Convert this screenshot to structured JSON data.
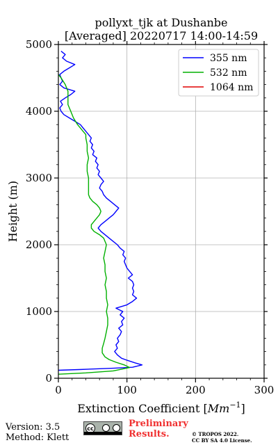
{
  "chart_data": {
    "type": "line",
    "title_line1": "pollyxt_tjk at Dushanbe",
    "title_line2": "[Averaged] 20220717 14:00-14:59",
    "xlabel_text": "Extinction Coefficient [",
    "xlabel_unit": "Mm",
    "xlabel_exponent": "−1",
    "xlabel_close": "]",
    "ylabel": "Height (m)",
    "xlim": [
      0,
      300
    ],
    "ylim": [
      0,
      5000
    ],
    "x_ticks": [
      "0",
      "100",
      "200",
      "300"
    ],
    "y_ticks": [
      "0",
      "1000",
      "2000",
      "3000",
      "4000",
      "5000"
    ],
    "grid": true,
    "legend_position": "top-right",
    "series": [
      {
        "name": "355 nm",
        "color": "#0000ff",
        "points": [
          [
            0,
            120
          ],
          [
            30,
            130
          ],
          [
            80,
            150
          ],
          [
            108,
            165
          ],
          [
            122,
            200
          ],
          [
            112,
            230
          ],
          [
            100,
            270
          ],
          [
            92,
            300
          ],
          [
            86,
            350
          ],
          [
            82,
            400
          ],
          [
            86,
            450
          ],
          [
            84,
            500
          ],
          [
            88,
            550
          ],
          [
            86,
            600
          ],
          [
            90,
            650
          ],
          [
            92,
            700
          ],
          [
            88,
            750
          ],
          [
            94,
            800
          ],
          [
            92,
            850
          ],
          [
            96,
            900
          ],
          [
            90,
            950
          ],
          [
            94,
            1000
          ],
          [
            84,
            1050
          ],
          [
            100,
            1100
          ],
          [
            108,
            1150
          ],
          [
            114,
            1200
          ],
          [
            108,
            1250
          ],
          [
            110,
            1300
          ],
          [
            108,
            1350
          ],
          [
            110,
            1400
          ],
          [
            108,
            1450
          ],
          [
            102,
            1500
          ],
          [
            108,
            1550
          ],
          [
            104,
            1600
          ],
          [
            100,
            1650
          ],
          [
            98,
            1700
          ],
          [
            96,
            1750
          ],
          [
            98,
            1800
          ],
          [
            94,
            1850
          ],
          [
            96,
            1900
          ],
          [
            90,
            1950
          ],
          [
            86,
            2000
          ],
          [
            80,
            2050
          ],
          [
            74,
            2100
          ],
          [
            68,
            2150
          ],
          [
            62,
            2200
          ],
          [
            58,
            2250
          ],
          [
            62,
            2300
          ],
          [
            68,
            2350
          ],
          [
            74,
            2400
          ],
          [
            80,
            2450
          ],
          [
            84,
            2500
          ],
          [
            88,
            2550
          ],
          [
            82,
            2600
          ],
          [
            76,
            2650
          ],
          [
            70,
            2700
          ],
          [
            66,
            2750
          ],
          [
            64,
            2800
          ],
          [
            60,
            2850
          ],
          [
            62,
            2900
          ],
          [
            66,
            2950
          ],
          [
            62,
            3000
          ],
          [
            58,
            3050
          ],
          [
            60,
            3100
          ],
          [
            56,
            3150
          ],
          [
            58,
            3200
          ],
          [
            54,
            3250
          ],
          [
            56,
            3300
          ],
          [
            50,
            3350
          ],
          [
            52,
            3400
          ],
          [
            48,
            3450
          ],
          [
            50,
            3500
          ],
          [
            46,
            3550
          ],
          [
            48,
            3600
          ],
          [
            44,
            3650
          ],
          [
            40,
            3700
          ],
          [
            36,
            3750
          ],
          [
            32,
            3800
          ],
          [
            24,
            3850
          ],
          [
            16,
            3900
          ],
          [
            8,
            3950
          ],
          [
            4,
            4000
          ],
          [
            2,
            4050
          ],
          [
            6,
            4100
          ],
          [
            3,
            4150
          ],
          [
            10,
            4200
          ],
          [
            18,
            4250
          ],
          [
            24,
            4300
          ],
          [
            8,
            4350
          ],
          [
            2,
            4400
          ],
          [
            6,
            4450
          ],
          [
            4,
            4500
          ],
          [
            2,
            4550
          ],
          [
            8,
            4600
          ],
          [
            16,
            4650
          ],
          [
            24,
            4700
          ],
          [
            12,
            4750
          ],
          [
            6,
            4800
          ],
          [
            10,
            4850
          ],
          [
            4,
            4900
          ]
        ]
      },
      {
        "name": "532 nm",
        "color": "#00b000",
        "points": [
          [
            0,
            60
          ],
          [
            40,
            80
          ],
          [
            80,
            110
          ],
          [
            104,
            160
          ],
          [
            96,
            200
          ],
          [
            84,
            240
          ],
          [
            74,
            280
          ],
          [
            68,
            320
          ],
          [
            64,
            380
          ],
          [
            64,
            450
          ],
          [
            66,
            520
          ],
          [
            68,
            600
          ],
          [
            70,
            700
          ],
          [
            72,
            800
          ],
          [
            72,
            900
          ],
          [
            70,
            1000
          ],
          [
            72,
            1100
          ],
          [
            70,
            1200
          ],
          [
            70,
            1300
          ],
          [
            68,
            1400
          ],
          [
            70,
            1500
          ],
          [
            68,
            1600
          ],
          [
            68,
            1700
          ],
          [
            66,
            1800
          ],
          [
            68,
            1900
          ],
          [
            70,
            2000
          ],
          [
            66,
            2100
          ],
          [
            60,
            2150
          ],
          [
            52,
            2200
          ],
          [
            48,
            2250
          ],
          [
            48,
            2300
          ],
          [
            52,
            2350
          ],
          [
            56,
            2400
          ],
          [
            60,
            2450
          ],
          [
            62,
            2500
          ],
          [
            60,
            2550
          ],
          [
            56,
            2600
          ],
          [
            50,
            2650
          ],
          [
            46,
            2700
          ],
          [
            44,
            2750
          ],
          [
            44,
            2800
          ],
          [
            44,
            2900
          ],
          [
            44,
            3000
          ],
          [
            42,
            3100
          ],
          [
            42,
            3200
          ],
          [
            44,
            3300
          ],
          [
            42,
            3400
          ],
          [
            42,
            3500
          ],
          [
            40,
            3600
          ],
          [
            40,
            3650
          ],
          [
            36,
            3700
          ],
          [
            28,
            3800
          ],
          [
            22,
            3900
          ],
          [
            18,
            4000
          ],
          [
            14,
            4100
          ],
          [
            14,
            4200
          ],
          [
            14,
            4300
          ],
          [
            10,
            4400
          ],
          [
            4,
            4500
          ],
          [
            0,
            4550
          ]
        ]
      },
      {
        "name": "1064 nm",
        "color": "#e00000",
        "points": []
      }
    ]
  },
  "footer": {
    "version": "Version: 3.5",
    "method": "Method: Klett",
    "preliminary_line1": "Preliminary",
    "preliminary_line2": "Results.",
    "copyright_line1": "© TROPOS 2022.",
    "copyright_line2": "CC BY SA 4.0 License."
  }
}
